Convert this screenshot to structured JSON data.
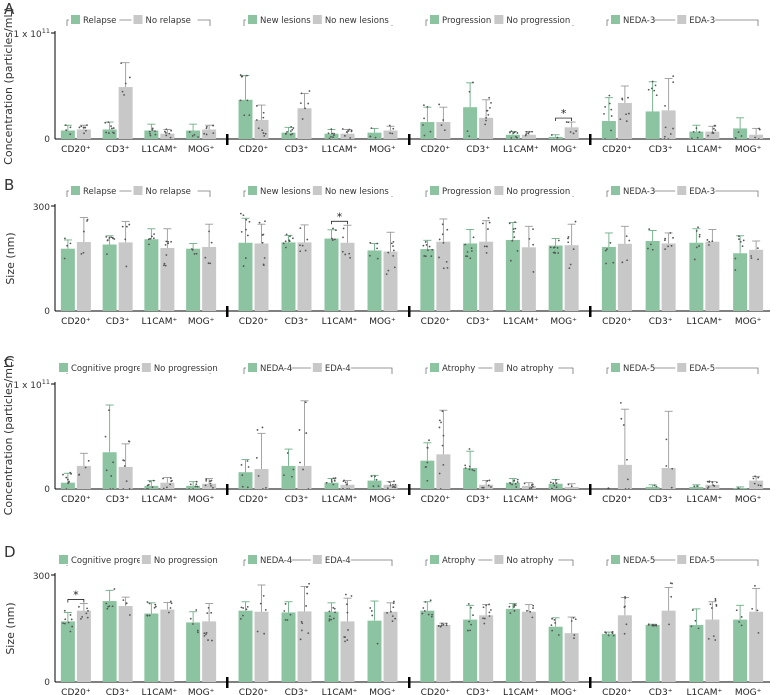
{
  "chart_data": [
    {
      "id": "A",
      "type": "bar",
      "measure": "concentration",
      "ylabel": "Concentration (particles/mL)",
      "y_ticks": [
        "1 x 10",
        "0"
      ],
      "y_tick_exp": "11",
      "ylim": [
        0,
        100
      ],
      "units": "x10^9 particles/mL",
      "categories": [
        "CD20⁺",
        "CD3⁺",
        "L1CAM⁺",
        "MOG⁺"
      ],
      "groups": [
        {
          "legend": [
            "Relapse",
            "No relapse"
          ],
          "values": [
            [
              8,
              9
            ],
            [
              9,
              49
            ],
            [
              8,
              5
            ],
            [
              8,
              9
            ]
          ],
          "errors": [
            [
              5,
              4
            ],
            [
              7,
              23
            ],
            [
              6,
              4
            ],
            [
              6,
              4
            ]
          ]
        },
        {
          "legend": [
            "New lesions",
            "No new lesions"
          ],
          "values": [
            [
              37,
              18
            ],
            [
              6,
              29
            ],
            [
              5,
              5
            ],
            [
              6,
              8
            ]
          ],
          "errors": [
            [
              23,
              14
            ],
            [
              5,
              14
            ],
            [
              4,
              4
            ],
            [
              4,
              4
            ]
          ]
        },
        {
          "legend": [
            "Progression",
            "No progression"
          ],
          "values": [
            [
              16,
              16
            ],
            [
              30,
              20
            ],
            [
              4,
              4
            ],
            [
              2,
              11
            ]
          ],
          "errors": [
            [
              14,
              14
            ],
            [
              23,
              17
            ],
            [
              3,
              3
            ],
            [
              2,
              5
            ]
          ]
        },
        {
          "legend": [
            "NEDA-3",
            "EDA-3"
          ],
          "values": [
            [
              17,
              34
            ],
            [
              26,
              27
            ],
            [
              7,
              7
            ],
            [
              10,
              4
            ]
          ],
          "errors": [
            [
              22,
              16
            ],
            [
              28,
              30
            ],
            [
              6,
              5
            ],
            [
              10,
              6
            ]
          ]
        }
      ],
      "significance": [
        {
          "group": 2,
          "category": 3,
          "label": "*"
        }
      ]
    },
    {
      "id": "B",
      "type": "bar",
      "measure": "size",
      "ylabel": "Size (nm)",
      "y_ticks": [
        "300",
        "0"
      ],
      "ylim": [
        0,
        300
      ],
      "units": "nm",
      "categories": [
        "CD20⁺",
        "CD3⁺",
        "L1CAM⁺",
        "MOG⁺"
      ],
      "groups": [
        {
          "legend": [
            "Relapse",
            "No relapse"
          ],
          "values": [
            [
              178,
              197
            ],
            [
              190,
              196
            ],
            [
              205,
              180
            ],
            [
              178,
              183
            ]
          ],
          "errors": [
            [
              25,
              70
            ],
            [
              25,
              60
            ],
            [
              30,
              55
            ],
            [
              15,
              65
            ]
          ]
        },
        {
          "legend": [
            "New lesions",
            "No new lesions"
          ],
          "values": [
            [
              195,
              193
            ],
            [
              196,
              196
            ],
            [
              207,
              195
            ],
            [
              173,
              170
            ]
          ],
          "errors": [
            [
              70,
              55
            ],
            [
              20,
              50
            ],
            [
              25,
              50
            ],
            [
              20,
              55
            ]
          ]
        },
        {
          "legend": [
            "Progression",
            "No progression"
          ],
          "values": [
            [
              177,
              198
            ],
            [
              193,
              198
            ],
            [
              203,
              182
            ],
            [
              187,
              188
            ]
          ],
          "errors": [
            [
              25,
              65
            ],
            [
              40,
              60
            ],
            [
              50,
              60
            ],
            [
              20,
              60
            ]
          ]
        },
        {
          "legend": [
            "NEDA-3",
            "EDA-3"
          ],
          "values": [
            [
              183,
              192
            ],
            [
              200,
              193
            ],
            [
              195,
              198
            ],
            [
              165,
              175
            ]
          ],
          "errors": [
            [
              40,
              50
            ],
            [
              30,
              30
            ],
            [
              40,
              35
            ],
            [
              50,
              25
            ]
          ]
        }
      ],
      "significance": [
        {
          "group": 1,
          "category": 2,
          "label": "*"
        }
      ]
    },
    {
      "id": "C",
      "type": "bar",
      "measure": "concentration",
      "ylabel": "Concentration (particles/mL)",
      "y_ticks": [
        "1 x 10",
        "0"
      ],
      "y_tick_exp": "11",
      "ylim": [
        0,
        100
      ],
      "units": "x10^9 particles/mL",
      "categories": [
        "CD20⁺",
        "CD3⁺",
        "L1CAM⁺",
        "MOG⁺"
      ],
      "groups": [
        {
          "legend": [
            "Cognitive progression",
            "No progression"
          ],
          "values": [
            [
              6,
              22
            ],
            [
              35,
              21
            ],
            [
              3,
              6
            ],
            [
              3,
              5
            ]
          ],
          "errors": [
            [
              9,
              12
            ],
            [
              45,
              22
            ],
            [
              5,
              5
            ],
            [
              4,
              5
            ]
          ]
        },
        {
          "legend": [
            "NEDA-4",
            "EDA-4"
          ],
          "values": [
            [
              16,
              19
            ],
            [
              22,
              22
            ],
            [
              6,
              4
            ],
            [
              8,
              4
            ]
          ],
          "errors": [
            [
              12,
              34
            ],
            [
              16,
              62
            ],
            [
              4,
              4
            ],
            [
              5,
              3
            ]
          ]
        },
        {
          "legend": [
            "Atrophy",
            "No atrophy"
          ],
          "values": [
            [
              27,
              33
            ],
            [
              20,
              4
            ],
            [
              6,
              3
            ],
            [
              5,
              2
            ]
          ],
          "errors": [
            [
              17,
              42
            ],
            [
              16,
              4
            ],
            [
              4,
              3
            ],
            [
              4,
              3
            ]
          ]
        },
        {
          "legend": [
            "NEDA-5",
            "EDA-5"
          ],
          "values": [
            [
              0,
              23
            ],
            [
              2,
              20
            ],
            [
              2,
              4
            ],
            [
              1,
              8
            ]
          ],
          "errors": [
            [
              0,
              53
            ],
            [
              2,
              54
            ],
            [
              2,
              3
            ],
            [
              1,
              4
            ]
          ]
        }
      ],
      "significance": []
    },
    {
      "id": "D",
      "type": "bar",
      "measure": "size",
      "ylabel": "Size (nm)",
      "y_ticks": [
        "300",
        "0"
      ],
      "ylim": [
        0,
        300
      ],
      "units": "nm",
      "categories": [
        "CD20⁺",
        "CD3⁺",
        "L1CAM⁺",
        "MOG⁺"
      ],
      "groups": [
        {
          "legend": [
            "Cognitive progression",
            "No progression"
          ],
          "values": [
            [
              170,
              200
            ],
            [
              227,
              213
            ],
            [
              192,
              203
            ],
            [
              167,
              170
            ]
          ],
          "errors": [
            [
              25,
              20
            ],
            [
              30,
              25
            ],
            [
              30,
              20
            ],
            [
              30,
              50
            ]
          ]
        },
        {
          "legend": [
            "NEDA-4",
            "EDA-4"
          ],
          "values": [
            [
              200,
              197
            ],
            [
              195,
              198
            ],
            [
              197,
              170
            ],
            [
              172,
              197
            ]
          ],
          "errors": [
            [
              25,
              75
            ],
            [
              30,
              70
            ],
            [
              25,
              65
            ],
            [
              55,
              25
            ]
          ]
        },
        {
          "legend": [
            "Atrophy",
            "No atrophy"
          ],
          "values": [
            [
              200,
              160
            ],
            [
              175,
              187
            ],
            [
              205,
              197
            ],
            [
              155,
              137
            ]
          ],
          "errors": [
            [
              25,
              5
            ],
            [
              40,
              30
            ],
            [
              15,
              20
            ],
            [
              25,
              45
            ]
          ]
        },
        {
          "legend": [
            "NEDA-5",
            "EDA-5"
          ],
          "values": [
            [
              135,
              187
            ],
            [
              160,
              200
            ],
            [
              160,
              175
            ],
            [
              175,
              197
            ]
          ],
          "errors": [
            [
              5,
              50
            ],
            [
              2,
              65
            ],
            [
              45,
              50
            ],
            [
              40,
              65
            ]
          ]
        }
      ],
      "significance": [
        {
          "group": 0,
          "category": 0,
          "label": "*"
        }
      ]
    }
  ],
  "colors": {
    "green": "#8cc4a1",
    "grey": "#c8c8c8",
    "dots": "#555555",
    "axis": "#000000",
    "bracket": "#777777",
    "err_green": "#6fae88",
    "err_grey": "#9a9a9a"
  }
}
